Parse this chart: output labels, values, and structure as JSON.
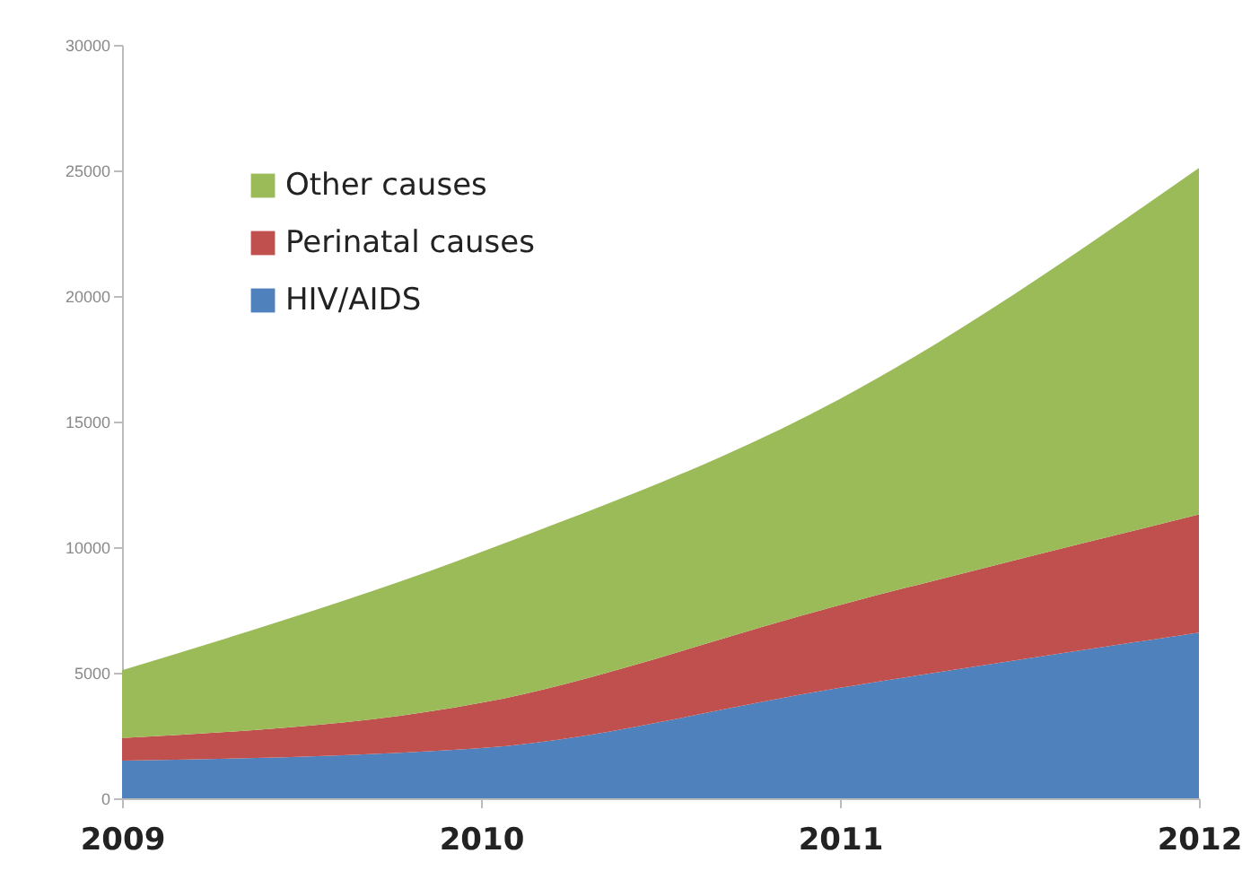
{
  "chart_data": {
    "type": "area",
    "stacked": true,
    "categories": [
      "2009",
      "2010",
      "2011",
      "2012"
    ],
    "series": [
      {
        "name": "HIV/AIDS",
        "color": "#4f81bd",
        "values": [
          1500,
          2000,
          4400,
          6600
        ]
      },
      {
        "name": "Perinatal causes",
        "color": "#c0504d",
        "values": [
          900,
          1800,
          3300,
          4700
        ]
      },
      {
        "name": "Other causes",
        "color": "#9bbb59",
        "values": [
          2700,
          6000,
          8200,
          13800
        ]
      }
    ],
    "ylim": [
      0,
      30000
    ],
    "yticks": [
      0,
      5000,
      10000,
      15000,
      20000,
      25000,
      30000
    ],
    "grid": false,
    "legend": "top left"
  }
}
